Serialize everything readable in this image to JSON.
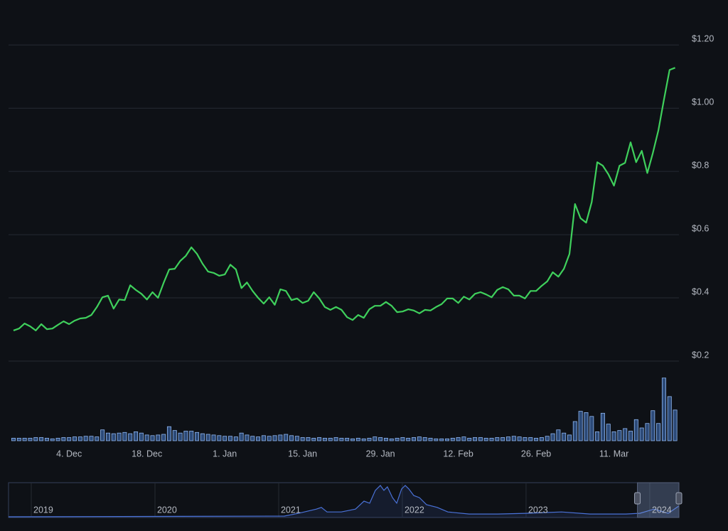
{
  "chart_data": {
    "type": "line",
    "categories": [
      null,
      null,
      null,
      null,
      null,
      null,
      null,
      null,
      null,
      null,
      "4. Dec",
      null,
      null,
      null,
      null,
      null,
      null,
      null,
      null,
      null,
      null,
      null,
      null,
      null,
      "18. Dec",
      null,
      null,
      null,
      null,
      null,
      null,
      null,
      null,
      null,
      null,
      null,
      null,
      null,
      "1. Jan",
      null,
      null,
      null,
      null,
      null,
      null,
      null,
      null,
      null,
      null,
      null,
      null,
      null,
      "15. Jan",
      null,
      null,
      null,
      null,
      null,
      null,
      null,
      null,
      null,
      null,
      null,
      null,
      null,
      "29. Jan",
      null,
      null,
      null,
      null,
      null,
      null,
      null,
      null,
      null,
      null,
      null,
      null,
      null,
      "12. Feb",
      null,
      null,
      null,
      null,
      null,
      null,
      null,
      null,
      null,
      null,
      null,
      null,
      null,
      "26. Feb",
      null,
      null,
      null,
      null,
      null,
      null,
      null,
      null,
      null,
      null,
      null,
      null,
      null,
      "11. Mar",
      null,
      null,
      null,
      null,
      null,
      null,
      null,
      null,
      null,
      null,
      null
    ],
    "values": [
      0.297,
      0.303,
      0.319,
      0.31,
      0.297,
      0.317,
      0.301,
      0.303,
      0.315,
      0.326,
      0.317,
      0.328,
      0.335,
      0.337,
      0.346,
      0.371,
      0.402,
      0.407,
      0.366,
      0.395,
      0.393,
      0.44,
      0.425,
      0.413,
      0.395,
      0.418,
      0.4,
      0.447,
      0.49,
      0.492,
      0.517,
      0.533,
      0.56,
      0.539,
      0.508,
      0.483,
      0.479,
      0.47,
      0.474,
      0.505,
      0.49,
      0.431,
      0.449,
      0.422,
      0.4,
      0.382,
      0.402,
      0.378,
      0.427,
      0.422,
      0.393,
      0.398,
      0.384,
      0.391,
      0.418,
      0.398,
      0.371,
      0.362,
      0.371,
      0.362,
      0.339,
      0.33,
      0.346,
      0.337,
      0.364,
      0.375,
      0.375,
      0.387,
      0.375,
      0.355,
      0.357,
      0.364,
      0.36,
      0.351,
      0.362,
      0.36,
      0.371,
      0.38,
      0.398,
      0.398,
      0.384,
      0.404,
      0.395,
      0.413,
      0.418,
      0.411,
      0.402,
      0.425,
      0.434,
      0.427,
      0.407,
      0.407,
      0.398,
      0.422,
      0.422,
      0.438,
      0.452,
      0.481,
      0.467,
      0.492,
      0.539,
      0.697,
      0.652,
      0.638,
      0.703,
      0.829,
      0.818,
      0.791,
      0.755,
      0.818,
      0.827,
      0.892,
      0.829,
      0.865,
      0.795,
      0.858,
      0.93,
      1.027,
      1.121,
      1.128
    ],
    "color": "#3fd05c",
    "ylim": [
      0.2,
      1.25
    ],
    "yticks": [
      {
        "value": 0.2,
        "label": "$0.2"
      },
      {
        "value": 0.4,
        "label": "$0.4"
      },
      {
        "value": 0.6,
        "label": "$0.6"
      },
      {
        "value": 0.8,
        "label": "$0.8"
      },
      {
        "value": 1.0,
        "label": "$1.00"
      },
      {
        "value": 1.2,
        "label": "$1.20"
      }
    ],
    "grid": true,
    "volume": {
      "color": "#8fb6ef",
      "lim": [
        0,
        100
      ],
      "values": [
        4,
        4,
        4,
        4,
        5,
        5,
        4,
        3,
        4,
        5,
        5,
        6,
        6,
        7,
        7,
        6,
        17,
        12,
        11,
        12,
        13,
        11,
        14,
        12,
        9,
        8,
        9,
        10,
        22,
        16,
        12,
        15,
        15,
        13,
        11,
        10,
        9,
        8,
        7,
        7,
        6,
        12,
        9,
        7,
        6,
        8,
        7,
        8,
        9,
        10,
        8,
        7,
        5,
        5,
        4,
        5,
        4,
        4,
        5,
        4,
        4,
        3,
        4,
        3,
        4,
        6,
        5,
        4,
        3,
        4,
        5,
        4,
        5,
        6,
        5,
        4,
        3,
        3,
        3,
        4,
        5,
        6,
        4,
        5,
        5,
        4,
        4,
        5,
        5,
        6,
        7,
        6,
        5,
        5,
        4,
        5,
        7,
        11,
        17,
        12,
        9,
        30,
        46,
        44,
        38,
        14,
        43,
        26,
        14,
        16,
        19,
        15,
        33,
        20,
        27,
        47,
        27,
        98,
        69,
        48
      ]
    },
    "navigator": {
      "color": "#4a72d8",
      "x": [
        2018.816,
        2021.046,
        2021.161,
        2021.305,
        2021.345,
        2021.391,
        2021.506,
        2021.621,
        2021.69,
        2021.736,
        2021.782,
        2021.822,
        2021.851,
        2021.879,
        2021.92,
        2021.954,
        2021.994,
        2022.023,
        2022.052,
        2022.092,
        2022.138,
        2022.195,
        2022.282,
        2022.368,
        2022.54,
        2022.77,
        2023.0,
        2023.287,
        2023.517,
        2023.805,
        2023.92,
        2024.034,
        2024.149,
        2024.236
      ],
      "values": [
        2,
        4,
        12,
        24,
        29,
        16,
        16,
        24,
        47,
        41,
        78,
        92,
        78,
        88,
        57,
        41,
        82,
        92,
        82,
        63,
        57,
        37,
        29,
        16,
        10,
        10,
        12,
        16,
        10,
        10,
        12,
        24,
        12,
        33
      ],
      "xlim": [
        2018.816,
        2024.236
      ],
      "ylim": [
        0,
        100
      ],
      "xticks": [
        2019,
        2020,
        2021,
        2022,
        2023,
        2024
      ],
      "selection": [
        2023.9,
        2024.236
      ]
    }
  }
}
